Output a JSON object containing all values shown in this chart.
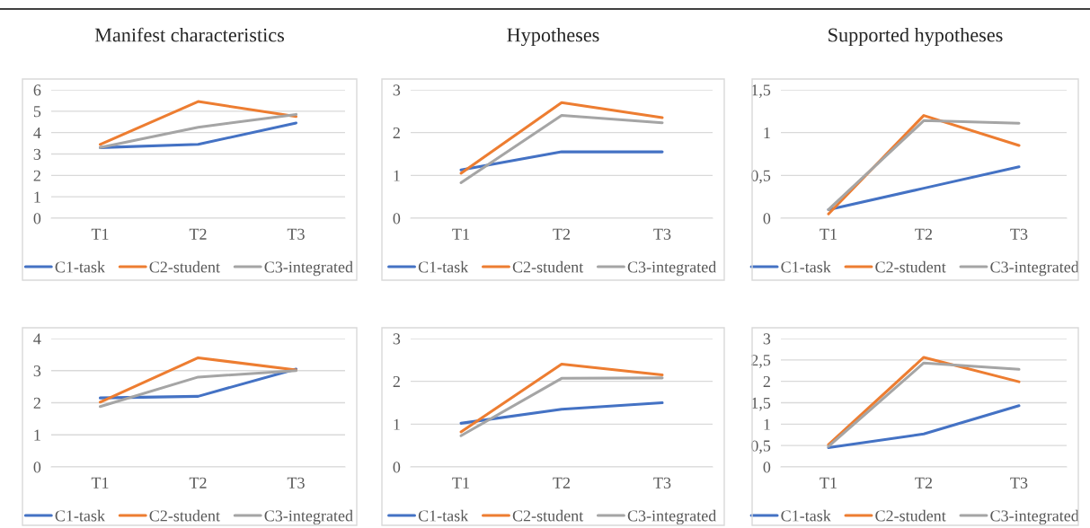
{
  "chart_data": [
    {
      "type": "line",
      "title": "Manifest characteristics",
      "categories": [
        "T1",
        "T2",
        "T3"
      ],
      "ylim": [
        0,
        6
      ],
      "yticks": [
        0,
        1,
        2,
        3,
        4,
        5,
        6
      ],
      "grid": "y",
      "legend": "bottom",
      "series": [
        {
          "name": "C1-task",
          "color": "#4472c4",
          "values": [
            3.3,
            3.45,
            4.45
          ]
        },
        {
          "name": "C2-student",
          "color": "#ed7d31",
          "values": [
            3.45,
            5.45,
            4.75
          ]
        },
        {
          "name": "C3-integrated",
          "color": "#a5a5a5",
          "values": [
            3.3,
            4.25,
            4.85
          ]
        }
      ]
    },
    {
      "type": "line",
      "title": "Hypotheses",
      "categories": [
        "T1",
        "T2",
        "T3"
      ],
      "ylim": [
        0,
        3
      ],
      "yticks": [
        0,
        1,
        2,
        3
      ],
      "grid": "y",
      "legend": "bottom",
      "series": [
        {
          "name": "C1-task",
          "color": "#4472c4",
          "values": [
            1.13,
            1.55,
            1.55
          ]
        },
        {
          "name": "C2-student",
          "color": "#ed7d31",
          "values": [
            1.05,
            2.7,
            2.35
          ]
        },
        {
          "name": "C3-integrated",
          "color": "#a5a5a5",
          "values": [
            0.83,
            2.4,
            2.23
          ]
        }
      ]
    },
    {
      "type": "line",
      "title": "Supported hypotheses",
      "categories": [
        "T1",
        "T2",
        "T3"
      ],
      "ylim": [
        0,
        1.5
      ],
      "yticks": [
        0,
        {
          "value": 0.5,
          "label": "0,5"
        },
        1,
        {
          "value": 1.5,
          "label": "1,5"
        }
      ],
      "grid": "y",
      "legend": "bottom",
      "series": [
        {
          "name": "C1-task",
          "color": "#4472c4",
          "values": [
            0.1,
            0.35,
            0.6
          ]
        },
        {
          "name": "C2-student",
          "color": "#ed7d31",
          "values": [
            0.05,
            1.2,
            0.85
          ]
        },
        {
          "name": "C3-integrated",
          "color": "#a5a5a5",
          "values": [
            0.1,
            1.14,
            1.11
          ]
        }
      ]
    },
    {
      "type": "line",
      "categories": [
        "T1",
        "T2",
        "T3"
      ],
      "ylim": [
        0,
        4
      ],
      "yticks": [
        0,
        1,
        2,
        3,
        4
      ],
      "grid": "y",
      "legend": "bottom",
      "series": [
        {
          "name": "C1-task",
          "color": "#4472c4",
          "values": [
            2.15,
            2.2,
            3.05
          ]
        },
        {
          "name": "C2-student",
          "color": "#ed7d31",
          "values": [
            2.02,
            3.4,
            3.02
          ]
        },
        {
          "name": "C3-integrated",
          "color": "#a5a5a5",
          "values": [
            1.88,
            2.8,
            3.0
          ]
        }
      ]
    },
    {
      "type": "line",
      "categories": [
        "T1",
        "T2",
        "T3"
      ],
      "ylim": [
        0,
        3
      ],
      "yticks": [
        0,
        1,
        2,
        3
      ],
      "grid": "y",
      "legend": "bottom",
      "series": [
        {
          "name": "C1-task",
          "color": "#4472c4",
          "values": [
            1.02,
            1.35,
            1.5
          ]
        },
        {
          "name": "C2-student",
          "color": "#ed7d31",
          "values": [
            0.82,
            2.4,
            2.15
          ]
        },
        {
          "name": "C3-integrated",
          "color": "#a5a5a5",
          "values": [
            0.73,
            2.07,
            2.08
          ]
        }
      ]
    },
    {
      "type": "line",
      "categories": [
        "T1",
        "T2",
        "T3"
      ],
      "ylim": [
        0,
        3
      ],
      "yticks": [
        0,
        {
          "value": 0.5,
          "label": "0,5"
        },
        1,
        {
          "value": 1.5,
          "label": "1,5"
        },
        2,
        {
          "value": 2.5,
          "label": "2,5"
        },
        3
      ],
      "grid": "y",
      "legend": "bottom",
      "series": [
        {
          "name": "C1-task",
          "color": "#4472c4",
          "values": [
            0.45,
            0.77,
            1.43
          ]
        },
        {
          "name": "C2-student",
          "color": "#ed7d31",
          "values": [
            0.52,
            2.56,
            1.99
          ]
        },
        {
          "name": "C3-integrated",
          "color": "#a5a5a5",
          "values": [
            0.48,
            2.43,
            2.28
          ]
        }
      ]
    }
  ]
}
